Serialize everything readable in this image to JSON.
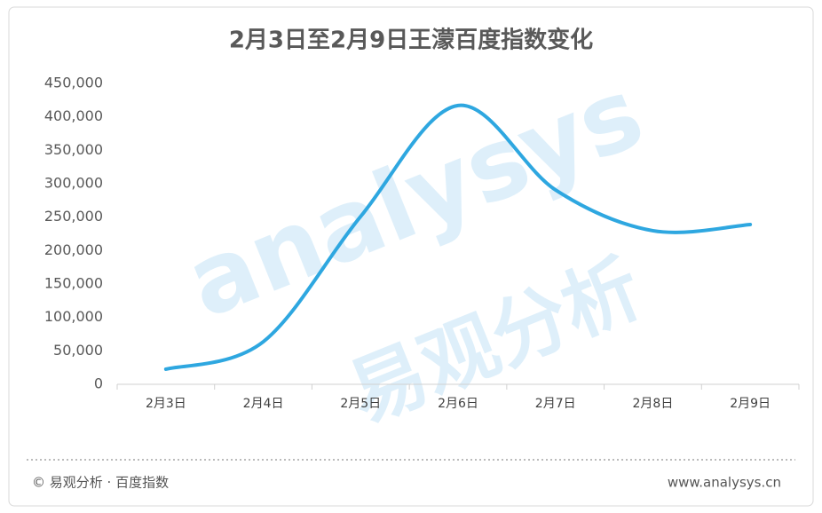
{
  "chart_data": {
    "type": "line",
    "title": "2月3日至2月9日王濛百度指数变化",
    "categories": [
      "2月3日",
      "2月4日",
      "2月5日",
      "2月6日",
      "2月7日",
      "2月8日",
      "2月9日"
    ],
    "series": [
      {
        "name": "王濛百度指数",
        "color": "#2ea7e0",
        "values": [
          22600,
          63700,
          251000,
          417000,
          290800,
          229700,
          239000
        ]
      }
    ],
    "ylim": [
      0,
      450000
    ],
    "yticks": [
      0,
      {
        "value": 50000,
        "label": "50,000"
      },
      {
        "value": 100000,
        "label": "100,000"
      },
      {
        "value": 150000,
        "label": "150,000"
      },
      {
        "value": 200000,
        "label": "200,000"
      },
      {
        "value": 250000,
        "label": "250,000"
      },
      {
        "value": 300000,
        "label": "300,000"
      },
      {
        "value": 350000,
        "label": "350,000"
      },
      {
        "value": 400000,
        "label": "400,000"
      },
      {
        "value": 450000,
        "label": "450,000"
      }
    ],
    "smooth": true,
    "watermark": [
      "analysys",
      "易观分析"
    ],
    "footer": {
      "source": "© 易观分析 · 百度指数",
      "site": "www.analysys.cn"
    }
  }
}
